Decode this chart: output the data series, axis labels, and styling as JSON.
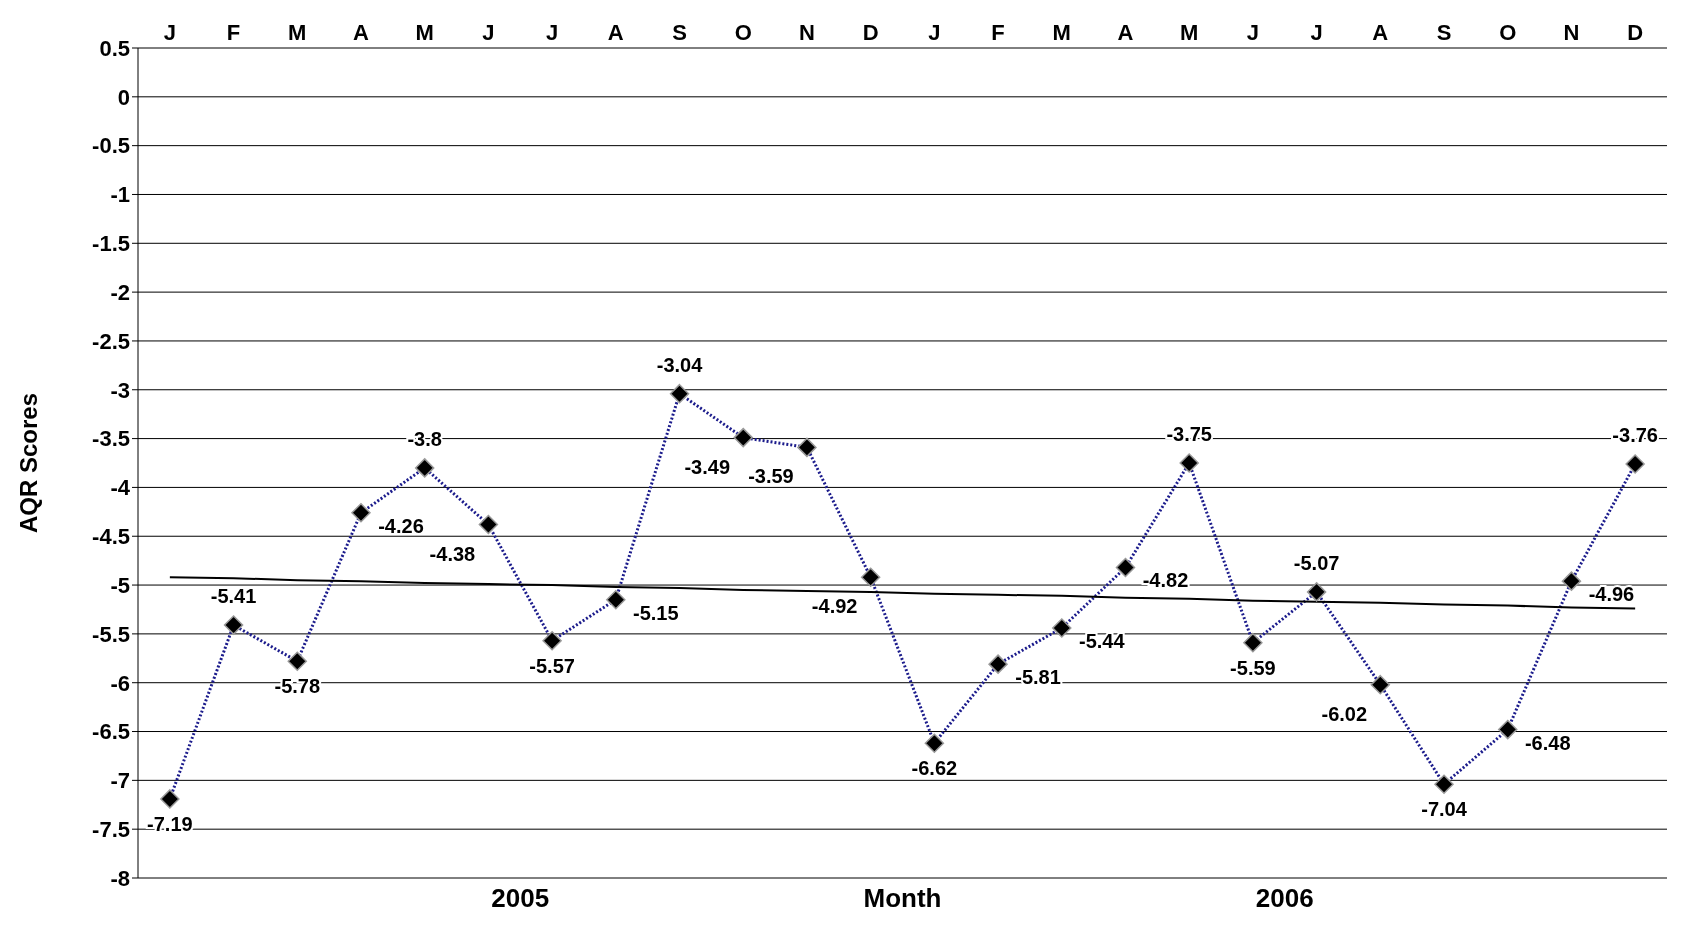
{
  "chart_data": {
    "type": "line",
    "xlabel": "Month",
    "ylabel": "AQR Scores",
    "categories": [
      "J",
      "F",
      "M",
      "A",
      "M",
      "J",
      "J",
      "A",
      "S",
      "O",
      "N",
      "D",
      "J",
      "F",
      "M",
      "A",
      "M",
      "J",
      "J",
      "A",
      "S",
      "O",
      "N",
      "D"
    ],
    "series": [
      {
        "color": "#1c1c8c",
        "marker": "diamond",
        "line_style": "dotted",
        "value_labels": [
          "-7.19",
          "-5.41",
          "-5.78",
          "-4.26",
          "-3.8",
          "-4.38",
          "-5.57",
          "-5.15",
          "-3.04",
          "-3.49",
          "-3.59",
          "-4.92",
          "-6.62",
          "-5.81",
          "-5.44",
          "-4.82",
          "-3.75",
          "-5.59",
          "-5.07",
          "-6.02",
          "-7.04",
          "-6.48",
          "-4.96",
          "-3.76"
        ],
        "values": [
          -7.19,
          -5.41,
          -5.78,
          -4.26,
          -3.8,
          -4.38,
          -5.57,
          -5.15,
          -3.04,
          -3.49,
          -3.59,
          -4.92,
          -6.62,
          -5.81,
          -5.44,
          -4.82,
          -3.75,
          -5.59,
          -5.07,
          -6.02,
          -7.04,
          -6.48,
          -4.96,
          -3.76
        ]
      },
      {
        "color": "#000000",
        "marker": "none",
        "line_style": "solid",
        "values": [
          -4.92,
          -4.93,
          -4.95,
          -4.96,
          -4.98,
          -4.99,
          -5.0,
          -5.02,
          -5.03,
          -5.05,
          -5.06,
          -5.07,
          -5.09,
          -5.1,
          -5.11,
          -5.13,
          -5.14,
          -5.16,
          -5.17,
          -5.18,
          -5.2,
          -5.21,
          -5.23,
          -5.24
        ]
      }
    ],
    "ylim": [
      -8,
      0.5
    ],
    "yticks": [
      -8,
      -7.5,
      -7,
      -6.5,
      -6,
      -5.5,
      -5,
      -4.5,
      -4,
      -3.5,
      -3,
      -2.5,
      -2,
      -1.5,
      -1,
      -0.5,
      0,
      0.5
    ],
    "grid": "y",
    "legend": false,
    "annotations": [
      "2005",
      "2006"
    ]
  }
}
